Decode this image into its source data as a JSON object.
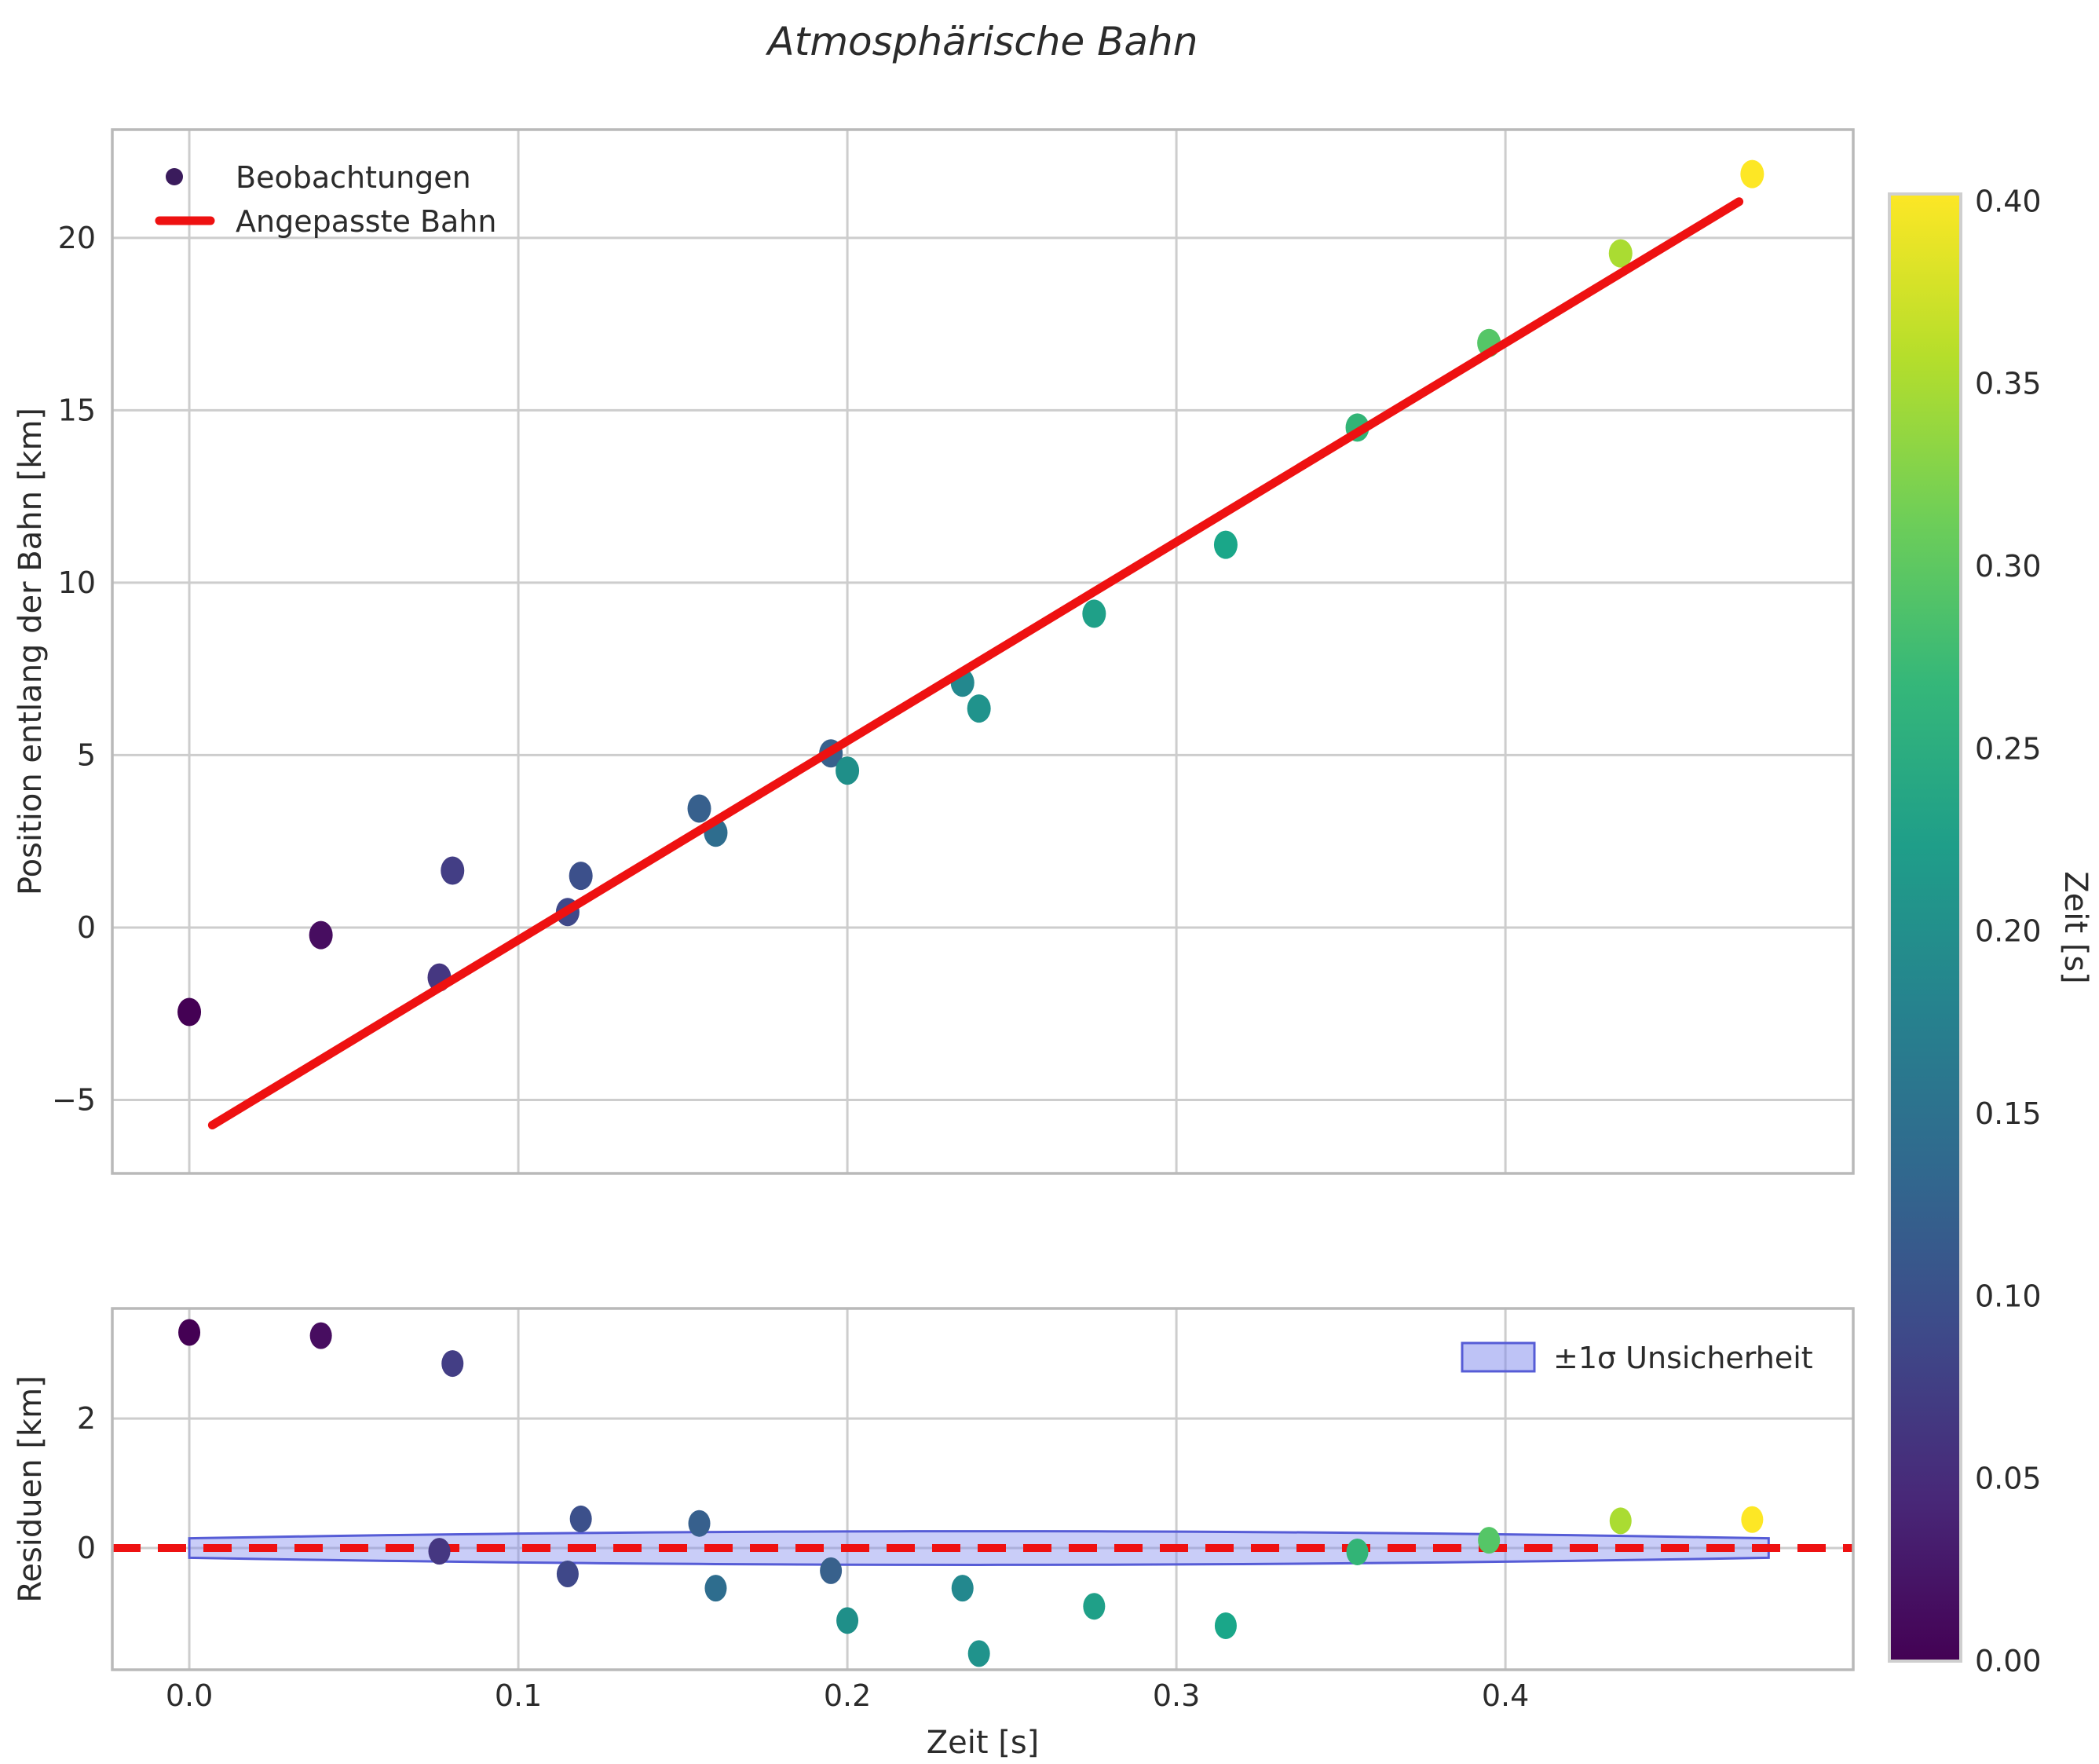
{
  "figure": {
    "title": "Atmosphärische Bahn",
    "background": "#ffffff",
    "text_color": "#2b2b2b"
  },
  "colors": {
    "fit_line": "#ee1111",
    "zero_line": "#ee1111",
    "band_fill": "#7e88ee",
    "band_fill_opacity": 0.42,
    "band_edge": "#565cd6",
    "grid": "#cdcdcd",
    "spine": "#b9b9b9",
    "legend_scatter_marker": "#3a1b5c"
  },
  "top_plot": {
    "ylabel": "Position entlang der Bahn [km]",
    "ytick_labels": [
      "20",
      "15",
      "10",
      "5",
      "0",
      "−5"
    ],
    "ytick_values": [
      20,
      15,
      10,
      5,
      0,
      -5
    ],
    "xtick_values": [
      0.0,
      0.1,
      0.2,
      0.3,
      0.4
    ],
    "xlim": [
      -0.0234,
      0.5057
    ],
    "ylim": [
      -7.13,
      23.14
    ],
    "legend": {
      "scatter_label": "Beobachtungen",
      "line_label": "Angepasste Bahn"
    }
  },
  "residual_plot": {
    "ylabel": "Residuen [km]",
    "xlabel": "Zeit [s]",
    "ytick_labels": [
      "2",
      "0"
    ],
    "ytick_values": [
      2,
      0
    ],
    "xtick_labels": [
      "0.0",
      "0.1",
      "0.2",
      "0.3",
      "0.4"
    ],
    "xtick_values": [
      0.0,
      0.1,
      0.2,
      0.3,
      0.4
    ],
    "xlim": [
      -0.0234,
      0.5057
    ],
    "ylim": [
      -1.88,
      3.7
    ],
    "legend": {
      "band_label": "±1σ Unsicherheit"
    }
  },
  "colorbar": {
    "label": "Zeit [s]",
    "tick_labels": [
      "0.40",
      "0.35",
      "0.30",
      "0.25",
      "0.20",
      "0.15",
      "0.10",
      "0.05",
      "0.00"
    ],
    "tick_values": [
      0.4,
      0.35,
      0.3,
      0.25,
      0.2,
      0.15,
      0.1,
      0.05,
      0.0
    ],
    "vmin": 0.0,
    "vmax": 0.402,
    "colormap": "viridis",
    "viridis_stops": [
      [
        0.0,
        "#440154"
      ],
      [
        0.111,
        "#482878"
      ],
      [
        0.222,
        "#3e4989"
      ],
      [
        0.333,
        "#31688e"
      ],
      [
        0.444,
        "#26828e"
      ],
      [
        0.556,
        "#1f9e89"
      ],
      [
        0.667,
        "#35b779"
      ],
      [
        0.778,
        "#6ece58"
      ],
      [
        0.889,
        "#b5de2b"
      ],
      [
        1.0,
        "#fde725"
      ]
    ]
  },
  "chart_data": [
    {
      "type": "scatter",
      "title": "Atmosphärische Bahn",
      "xlabel": "Zeit [s]",
      "ylabel": "Position entlang der Bahn [km]",
      "xlim": [
        -0.0234,
        0.5057
      ],
      "ylim": [
        -7.13,
        23.14
      ],
      "grid": true,
      "legend_position": "upper left",
      "series": [
        {
          "name": "Beobachtungen",
          "type": "scatter",
          "colormap": "viridis",
          "color_by": "Zeit [s]",
          "x": [
            0.0,
            0.04,
            0.076,
            0.08,
            0.115,
            0.119,
            0.155,
            0.16,
            0.195,
            0.2,
            0.235,
            0.24,
            0.275,
            0.315,
            0.355,
            0.395,
            0.435,
            0.475
          ],
          "y": [
            -2.45,
            -0.22,
            -1.45,
            1.65,
            0.45,
            1.5,
            3.45,
            2.75,
            5.05,
            4.55,
            7.1,
            6.35,
            9.1,
            11.1,
            14.5,
            16.95,
            19.55,
            21.85
          ],
          "point_colors": [
            "#440154",
            "#470d60",
            "#453781",
            "#433e85",
            "#3f4889",
            "#3c508b",
            "#37608d",
            "#2e6d8e",
            "#38618c",
            "#1f8f89",
            "#23888e",
            "#20938c",
            "#1fa088",
            "#1aa789",
            "#32b476",
            "#55c667",
            "#aadc32",
            "#fde725"
          ]
        },
        {
          "name": "Angepasste Bahn",
          "type": "line",
          "color": "#ee1111",
          "x": [
            0.007,
            0.471
          ],
          "y": [
            -5.73,
            21.05
          ]
        }
      ]
    },
    {
      "type": "scatter",
      "xlabel": "Zeit [s]",
      "ylabel": "Residuen [km]",
      "xlim": [
        -0.0234,
        0.5057
      ],
      "ylim": [
        -1.88,
        3.7
      ],
      "grid": true,
      "legend_position": "upper right",
      "zero_line": {
        "y": 0,
        "color": "#ee1111",
        "style": "dashed"
      },
      "uncertainty_band": {
        "label": "±1σ Unsicherheit",
        "x_start": 0.0,
        "x_end": 0.48,
        "half_width_ends": 0.15,
        "half_width_mid": 0.26
      },
      "series": [
        {
          "name": "Residuen",
          "type": "scatter",
          "x": [
            0.0,
            0.04,
            0.076,
            0.08,
            0.115,
            0.119,
            0.155,
            0.16,
            0.195,
            0.2,
            0.235,
            0.24,
            0.275,
            0.315,
            0.355,
            0.395,
            0.435,
            0.475
          ],
          "y": [
            3.33,
            3.28,
            -0.05,
            2.85,
            -0.4,
            0.45,
            0.38,
            -0.62,
            -0.35,
            -1.12,
            -0.62,
            -1.63,
            -0.9,
            -1.2,
            -0.06,
            0.12,
            0.42,
            0.44
          ],
          "point_colors": [
            "#440154",
            "#470d60",
            "#453781",
            "#433e85",
            "#3f4889",
            "#3c508b",
            "#37608d",
            "#2e6d8e",
            "#38618c",
            "#1f8f89",
            "#23888e",
            "#20938c",
            "#1fa088",
            "#1aa789",
            "#32b476",
            "#55c667",
            "#aadc32",
            "#fde725"
          ]
        }
      ]
    }
  ]
}
